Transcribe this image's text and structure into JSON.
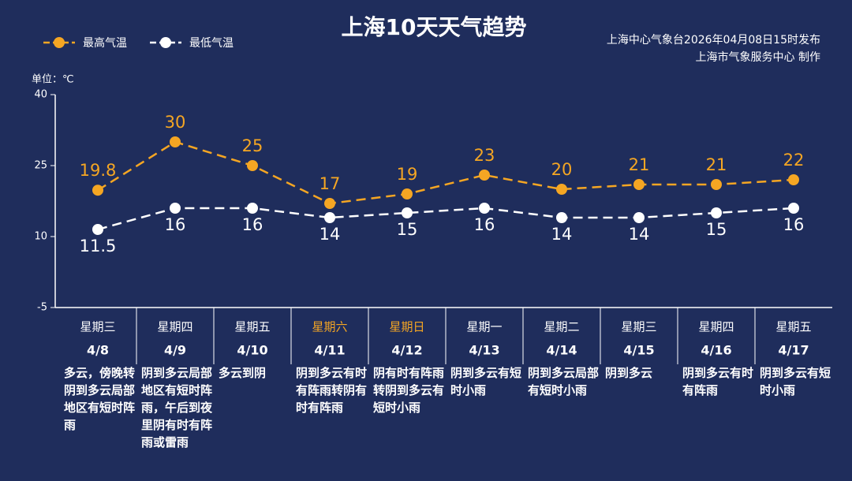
{
  "chart_data": {
    "type": "line",
    "title": "上海10天天气趋势",
    "source": [
      "上海中心气象台2026年04月08日15时发布",
      "上海市气象服务中心 制作"
    ],
    "unit": "单位：℃",
    "categories": [
      "4/8",
      "4/9",
      "4/10",
      "4/11",
      "4/12",
      "4/13",
      "4/14",
      "4/15",
      "4/16",
      "4/17"
    ],
    "weekdays": [
      "星期三",
      "星期四",
      "星期五",
      "星期六",
      "星期日",
      "星期一",
      "星期二",
      "星期三",
      "星期四",
      "星期五"
    ],
    "weekday_colors": [
      "#ffffff",
      "#ffffff",
      "#ffffff",
      "#f5a623",
      "#f5a623",
      "#ffffff",
      "#ffffff",
      "#ffffff",
      "#ffffff",
      "#ffffff"
    ],
    "descriptions": [
      "多云，傍晚转阴到多云局部地区有短时阵雨",
      "阴到多云局部地区有短时阵雨，午后到夜里阴有时有阵雨或雷雨",
      "多云到阴",
      "阴到多云有时有阵雨转阴有时有阵雨",
      "阴有时有阵雨转阴到多云有短时小雨",
      "阴到多云有短时小雨",
      "阴到多云局部有短时小雨",
      "阴到多云",
      "阴到多云有时有阵雨",
      "阴到多云有短时小雨"
    ],
    "series": [
      {
        "name": "最高气温",
        "color": "#f5a623",
        "values": [
          19.8,
          30,
          25,
          17,
          19,
          23,
          20,
          21,
          21,
          22
        ]
      },
      {
        "name": "最低气温",
        "color": "#ffffff",
        "values": [
          11.5,
          16,
          16,
          14,
          15,
          16,
          14,
          14,
          15,
          16
        ]
      }
    ],
    "line_style": "dashed",
    "ylim": [
      -5,
      40
    ],
    "yticks": [
      -5,
      10,
      25,
      40
    ]
  }
}
